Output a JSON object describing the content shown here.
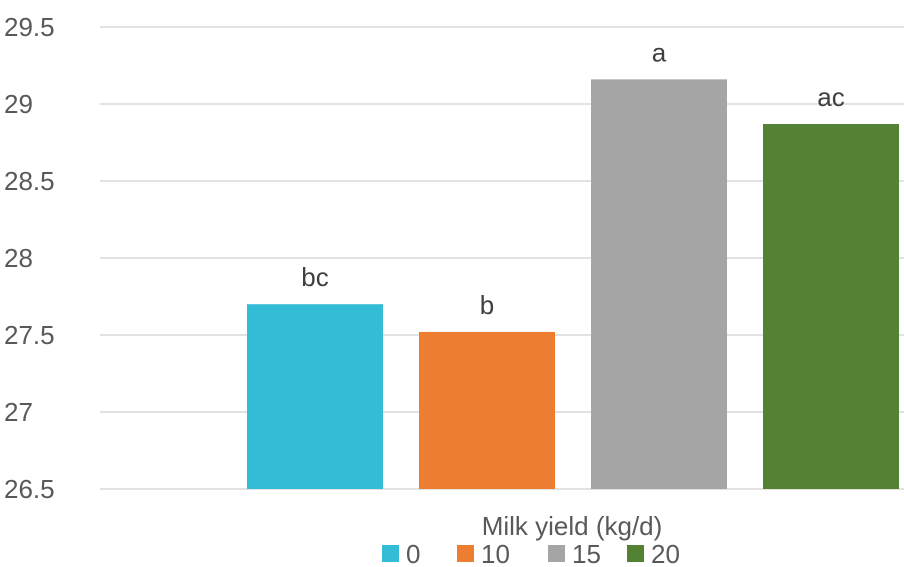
{
  "chart_data": {
    "type": "bar",
    "title": "",
    "xlabel": "Milk yield (kg/d)",
    "ylabel": "",
    "ylim": [
      26.5,
      29.5
    ],
    "yticks": [
      "26.5",
      "27",
      "27.5",
      "28",
      "28.5",
      "29",
      "29.5"
    ],
    "grid": true,
    "legend_position": "bottom",
    "series": [
      {
        "name": "0",
        "value": 27.7,
        "label": "bc",
        "color": "#33bcd6"
      },
      {
        "name": "10",
        "value": 27.52,
        "label": "b",
        "color": "#ed7d31"
      },
      {
        "name": "15",
        "value": 29.16,
        "label": "a",
        "color": "#a5a5a5"
      },
      {
        "name": "20",
        "value": 28.87,
        "label": "ac",
        "color": "#548235"
      }
    ]
  }
}
